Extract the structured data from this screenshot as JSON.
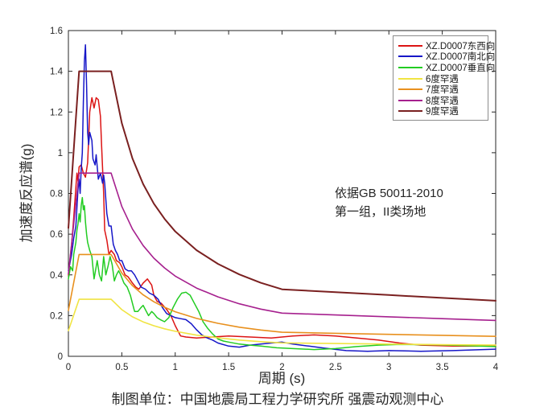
{
  "caption": "制图单位：中国地震局工程力学研究所 强震动观测中心",
  "annotation": {
    "line1": "依据GB 50011-2010",
    "line2": "第一组，II类场地"
  },
  "chart_data": {
    "type": "line",
    "title": "",
    "xlabel": "周期 (s)",
    "ylabel": "加速度反应谱(g)",
    "xlim": [
      0,
      4
    ],
    "ylim": [
      0,
      1.6
    ],
    "xticks": [
      0,
      0.5,
      1,
      1.5,
      2,
      2.5,
      3,
      3.5,
      4
    ],
    "xtick_labels": [
      "0",
      "0.5",
      "1",
      "1.5",
      "2",
      "2.5",
      "3",
      "3.5",
      "4"
    ],
    "yticks": [
      0,
      0.2,
      0.4,
      0.6,
      0.8,
      1,
      1.2,
      1.4,
      1.6
    ],
    "ytick_labels": [
      "0",
      "0.2",
      "0.4",
      "0.6",
      "0.8",
      "1",
      "1.2",
      "1.4",
      "1.6"
    ],
    "grid": false,
    "legend_position": "top-right",
    "axis_color": "#262626",
    "series": [
      {
        "id": "xz-d0007-ew",
        "name": "XZ.D0007东西向",
        "color": "#dc1414",
        "lw": 1.5,
        "x": [
          0,
          0.03,
          0.05,
          0.07,
          0.08,
          0.09,
          0.1,
          0.12,
          0.14,
          0.16,
          0.18,
          0.19,
          0.2,
          0.22,
          0.24,
          0.26,
          0.28,
          0.3,
          0.31,
          0.33,
          0.34,
          0.36,
          0.38,
          0.4,
          0.43,
          0.45,
          0.48,
          0.5,
          0.53,
          0.56,
          0.6,
          0.63,
          0.66,
          0.7,
          0.74,
          0.78,
          0.8,
          0.83,
          0.87,
          0.92,
          0.96,
          1.0,
          1.05,
          1.1,
          1.2,
          1.35,
          1.5,
          1.7,
          1.9,
          2.1,
          2.3,
          2.5,
          2.7,
          2.9,
          3.1,
          3.3,
          3.6,
          4.0
        ],
        "y": [
          0.4,
          0.55,
          0.68,
          0.83,
          0.9,
          0.86,
          0.93,
          0.94,
          0.9,
          0.88,
          0.95,
          1.07,
          1.2,
          1.27,
          1.22,
          1.27,
          1.26,
          1.18,
          1.04,
          0.8,
          0.62,
          0.57,
          0.5,
          0.52,
          0.5,
          0.47,
          0.46,
          0.44,
          0.4,
          0.39,
          0.36,
          0.34,
          0.33,
          0.36,
          0.38,
          0.35,
          0.3,
          0.27,
          0.26,
          0.23,
          0.2,
          0.15,
          0.1,
          0.095,
          0.09,
          0.095,
          0.1,
          0.095,
          0.09,
          0.1,
          0.105,
          0.1,
          0.09,
          0.08,
          0.065,
          0.055,
          0.05,
          0.05
        ]
      },
      {
        "id": "xz-d0007-ns",
        "name": "XZ.D0007南北向",
        "color": "#1616c8",
        "lw": 1.5,
        "x": [
          0,
          0.03,
          0.05,
          0.07,
          0.09,
          0.1,
          0.11,
          0.12,
          0.13,
          0.14,
          0.15,
          0.16,
          0.17,
          0.18,
          0.19,
          0.2,
          0.22,
          0.23,
          0.25,
          0.26,
          0.28,
          0.3,
          0.32,
          0.33,
          0.34,
          0.36,
          0.38,
          0.4,
          0.42,
          0.44,
          0.46,
          0.48,
          0.5,
          0.53,
          0.56,
          0.59,
          0.62,
          0.65,
          0.68,
          0.72,
          0.76,
          0.8,
          0.84,
          0.88,
          0.92,
          0.96,
          1.0,
          1.05,
          1.1,
          1.15,
          1.2,
          1.25,
          1.3,
          1.35,
          1.4,
          1.5,
          1.6,
          1.7,
          1.8,
          1.9,
          2.0,
          2.1,
          2.25,
          2.4,
          2.6,
          2.8,
          3.0,
          3.3,
          3.6,
          4.0
        ],
        "y": [
          0.42,
          0.5,
          0.58,
          0.64,
          0.82,
          0.87,
          0.8,
          0.92,
          1.0,
          1.25,
          1.45,
          1.53,
          1.33,
          1.1,
          1.04,
          1.1,
          1.06,
          0.97,
          0.94,
          0.99,
          0.87,
          0.9,
          0.85,
          0.89,
          0.85,
          0.7,
          0.64,
          0.64,
          0.55,
          0.52,
          0.5,
          0.47,
          0.47,
          0.43,
          0.42,
          0.42,
          0.4,
          0.37,
          0.34,
          0.33,
          0.31,
          0.3,
          0.28,
          0.24,
          0.21,
          0.2,
          0.19,
          0.185,
          0.18,
          0.16,
          0.13,
          0.105,
          0.09,
          0.08,
          0.065,
          0.05,
          0.045,
          0.055,
          0.06,
          0.065,
          0.07,
          0.06,
          0.05,
          0.04,
          0.028,
          0.025,
          0.028,
          0.025,
          0.028,
          0.035
        ]
      },
      {
        "id": "xz-d0007-ud",
        "name": "XZ.D0007垂直向",
        "color": "#22cc22",
        "lw": 1.5,
        "x": [
          0,
          0.02,
          0.04,
          0.05,
          0.07,
          0.08,
          0.09,
          0.1,
          0.11,
          0.12,
          0.13,
          0.14,
          0.15,
          0.16,
          0.17,
          0.18,
          0.2,
          0.22,
          0.24,
          0.26,
          0.27,
          0.29,
          0.31,
          0.33,
          0.34,
          0.35,
          0.37,
          0.39,
          0.41,
          0.43,
          0.45,
          0.47,
          0.49,
          0.52,
          0.55,
          0.58,
          0.6,
          0.62,
          0.65,
          0.68,
          0.7,
          0.73,
          0.75,
          0.78,
          0.8,
          0.83,
          0.86,
          0.9,
          0.94,
          0.98,
          1.02,
          1.06,
          1.1,
          1.14,
          1.18,
          1.22,
          1.26,
          1.3,
          1.35,
          1.4,
          1.45,
          1.5,
          1.6,
          1.7,
          1.8,
          1.95,
          2.1,
          2.3,
          2.5,
          2.7,
          2.9,
          3.1,
          3.4,
          3.7,
          4.0
        ],
        "y": [
          0.38,
          0.44,
          0.42,
          0.5,
          0.56,
          0.62,
          0.65,
          0.7,
          0.66,
          0.74,
          0.78,
          0.72,
          0.74,
          0.66,
          0.6,
          0.56,
          0.52,
          0.49,
          0.38,
          0.44,
          0.47,
          0.4,
          0.37,
          0.49,
          0.45,
          0.4,
          0.44,
          0.49,
          0.45,
          0.37,
          0.4,
          0.42,
          0.4,
          0.36,
          0.34,
          0.3,
          0.26,
          0.22,
          0.22,
          0.24,
          0.25,
          0.22,
          0.2,
          0.22,
          0.21,
          0.19,
          0.18,
          0.17,
          0.19,
          0.24,
          0.28,
          0.31,
          0.315,
          0.3,
          0.26,
          0.22,
          0.17,
          0.14,
          0.11,
          0.085,
          0.075,
          0.07,
          0.06,
          0.055,
          0.05,
          0.042,
          0.038,
          0.033,
          0.038,
          0.048,
          0.055,
          0.058,
          0.057,
          0.053,
          0.048
        ]
      },
      {
        "id": "rare-6",
        "name": "6度罕遇",
        "color": "#f0e442",
        "lw": 1.6,
        "x": [
          0,
          0.1,
          0.4,
          0.5,
          0.6,
          0.7,
          0.8,
          0.9,
          1.0,
          1.2,
          1.4,
          1.6,
          1.8,
          2.0,
          2.5,
          3.0,
          3.5,
          4.0
        ],
        "y": [
          0.126,
          0.28,
          0.28,
          0.229,
          0.194,
          0.169,
          0.15,
          0.135,
          0.123,
          0.104,
          0.091,
          0.08,
          0.072,
          0.066,
          0.063,
          0.06,
          0.057,
          0.055
        ]
      },
      {
        "id": "rare-7",
        "name": "7度罕遇",
        "color": "#e8901e",
        "lw": 1.6,
        "x": [
          0,
          0.1,
          0.4,
          0.5,
          0.6,
          0.7,
          0.8,
          0.9,
          1.0,
          1.2,
          1.4,
          1.6,
          1.8,
          2.0,
          2.5,
          3.0,
          3.5,
          4.0
        ],
        "y": [
          0.225,
          0.5,
          0.5,
          0.409,
          0.347,
          0.302,
          0.268,
          0.241,
          0.219,
          0.186,
          0.162,
          0.143,
          0.129,
          0.118,
          0.113,
          0.108,
          0.103,
          0.098
        ]
      },
      {
        "id": "rare-8",
        "name": "8度罕遇",
        "color": "#a6208e",
        "lw": 1.6,
        "x": [
          0,
          0.1,
          0.4,
          0.5,
          0.6,
          0.7,
          0.8,
          0.9,
          1.0,
          1.2,
          1.4,
          1.6,
          1.8,
          2.0,
          2.5,
          3.0,
          3.5,
          4.0
        ],
        "y": [
          0.405,
          0.9,
          0.9,
          0.736,
          0.625,
          0.544,
          0.482,
          0.434,
          0.394,
          0.335,
          0.292,
          0.258,
          0.232,
          0.212,
          0.203,
          0.194,
          0.185,
          0.176
        ]
      },
      {
        "id": "rare-9",
        "name": "9度罕遇",
        "color": "#7a2020",
        "lw": 2,
        "x": [
          0,
          0.1,
          0.4,
          0.5,
          0.6,
          0.7,
          0.8,
          0.9,
          1.0,
          1.2,
          1.4,
          1.6,
          1.8,
          2.0,
          2.5,
          3.0,
          3.5,
          4.0
        ],
        "y": [
          0.63,
          1.4,
          1.4,
          1.145,
          0.972,
          0.846,
          0.75,
          0.675,
          0.613,
          0.521,
          0.454,
          0.402,
          0.361,
          0.329,
          0.315,
          0.301,
          0.287,
          0.273
        ]
      }
    ]
  }
}
